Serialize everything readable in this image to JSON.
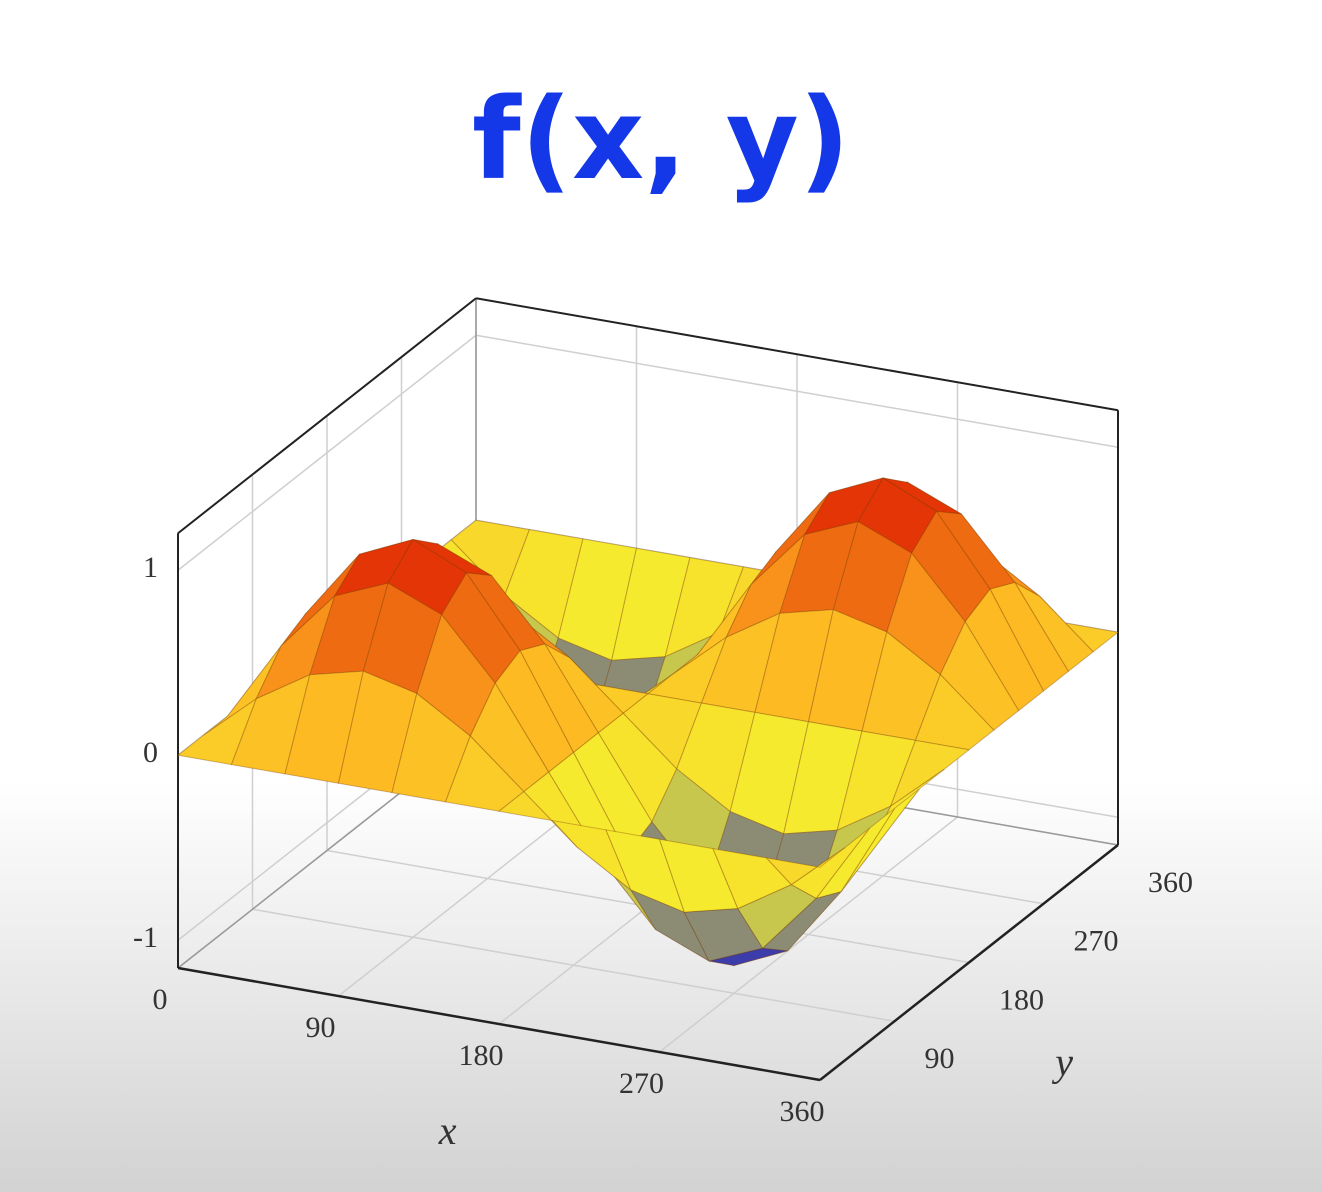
{
  "chart_data": {
    "type": "surface",
    "title": "f(x, y)",
    "xlabel": "x",
    "ylabel": "y",
    "x": [
      0,
      30,
      60,
      90,
      120,
      150,
      180,
      210,
      240,
      270,
      300,
      330,
      360
    ],
    "y": [
      0,
      30,
      60,
      90,
      120,
      150,
      180,
      210,
      240,
      270,
      300,
      330,
      360
    ],
    "z": [
      [
        0,
        0,
        0,
        0,
        0,
        0,
        0,
        0,
        0,
        0,
        0,
        0,
        0
      ],
      [
        0,
        0.25,
        0.43,
        0.5,
        0.43,
        0.25,
        0,
        -0.25,
        -0.43,
        -0.5,
        -0.43,
        -0.25,
        0
      ],
      [
        0,
        0.43,
        0.75,
        0.87,
        0.75,
        0.43,
        0,
        -0.43,
        -0.75,
        -0.87,
        -0.75,
        -0.43,
        0
      ],
      [
        0,
        0.5,
        0.87,
        1,
        0.87,
        0.5,
        0,
        -0.5,
        -0.87,
        -1,
        -0.87,
        -0.5,
        0
      ],
      [
        0,
        0.43,
        0.75,
        0.87,
        0.75,
        0.43,
        0,
        -0.43,
        -0.75,
        -0.87,
        -0.75,
        -0.43,
        0
      ],
      [
        0,
        0.25,
        0.43,
        0.5,
        0.43,
        0.25,
        0,
        -0.25,
        -0.43,
        -0.5,
        -0.43,
        -0.25,
        0
      ],
      [
        0,
        0,
        0,
        0,
        0,
        0,
        0,
        0,
        0,
        0,
        0,
        0,
        0
      ],
      [
        0,
        -0.25,
        -0.43,
        -0.5,
        -0.43,
        -0.25,
        0,
        0.25,
        0.43,
        0.5,
        0.43,
        0.25,
        0
      ],
      [
        0,
        -0.43,
        -0.75,
        -0.87,
        -0.75,
        -0.43,
        0,
        0.43,
        0.75,
        0.87,
        0.75,
        0.43,
        0
      ],
      [
        0,
        -0.5,
        -0.87,
        -1,
        -0.87,
        -0.5,
        0,
        0.5,
        0.87,
        1,
        0.87,
        0.5,
        0
      ],
      [
        0,
        -0.43,
        -0.75,
        -0.87,
        -0.75,
        -0.43,
        0,
        0.43,
        0.75,
        0.87,
        0.75,
        0.43,
        0
      ],
      [
        0,
        -0.25,
        -0.43,
        -0.5,
        -0.43,
        -0.25,
        0,
        0.25,
        0.43,
        0.5,
        0.43,
        0.25,
        0
      ],
      [
        0,
        0,
        0,
        0,
        0,
        0,
        0,
        0,
        0,
        0,
        0,
        0,
        0
      ]
    ],
    "xlim": [
      0,
      360
    ],
    "ylim": [
      0,
      360
    ],
    "zlim": [
      -1.15,
      1.2
    ],
    "xticks": [
      0,
      90,
      180,
      270,
      360
    ],
    "yticks": [
      90,
      180,
      270,
      360
    ],
    "zticks": [
      -1,
      0,
      1
    ],
    "grid": true,
    "colormap": [
      "#1010c8",
      "#f4f430",
      "#ffb020",
      "#dc1800"
    ]
  }
}
